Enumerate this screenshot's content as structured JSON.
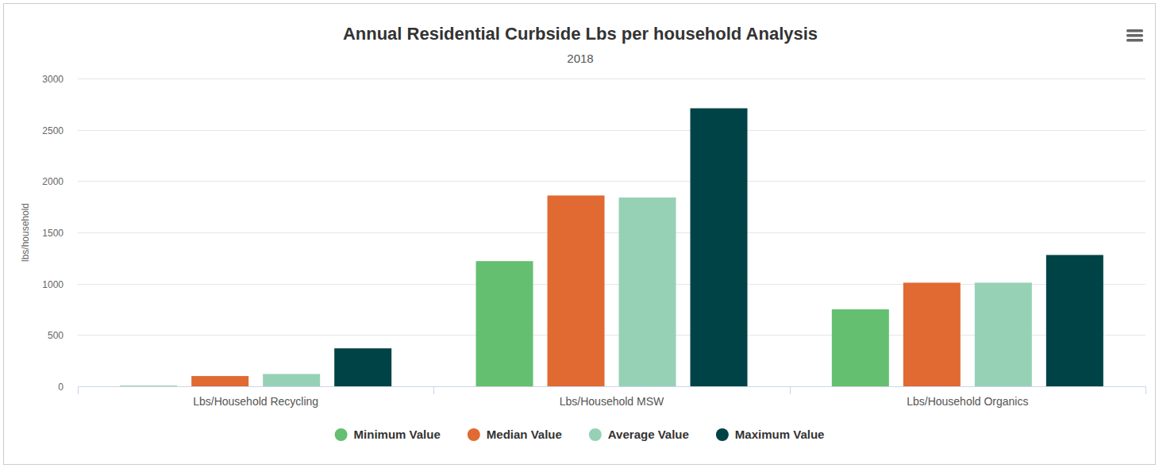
{
  "chart_data": {
    "type": "bar",
    "title": "Annual Residential Curbside Lbs per household Analysis",
    "subtitle": "2018",
    "y_label": "lbs/household",
    "categories": [
      "Lbs/Household Recycling",
      "Lbs/Household MSW",
      "Lbs/Household Organics"
    ],
    "series": [
      {
        "name": "Minimum Value",
        "color": "#64bf70",
        "values": [
          5,
          1220,
          750
        ]
      },
      {
        "name": "Median Value",
        "color": "#e06a32",
        "values": [
          100,
          1860,
          1010
        ]
      },
      {
        "name": "Average Value",
        "color": "#96d1b6",
        "values": [
          120,
          1840,
          1010
        ]
      },
      {
        "name": "Maximum Value",
        "color": "#004346",
        "values": [
          370,
          2710,
          1280
        ]
      }
    ],
    "ylim": [
      0,
      3000
    ],
    "yticks": [
      0,
      500,
      1000,
      1500,
      2000,
      2500,
      3000
    ],
    "grid": true,
    "legend": "bottom"
  }
}
